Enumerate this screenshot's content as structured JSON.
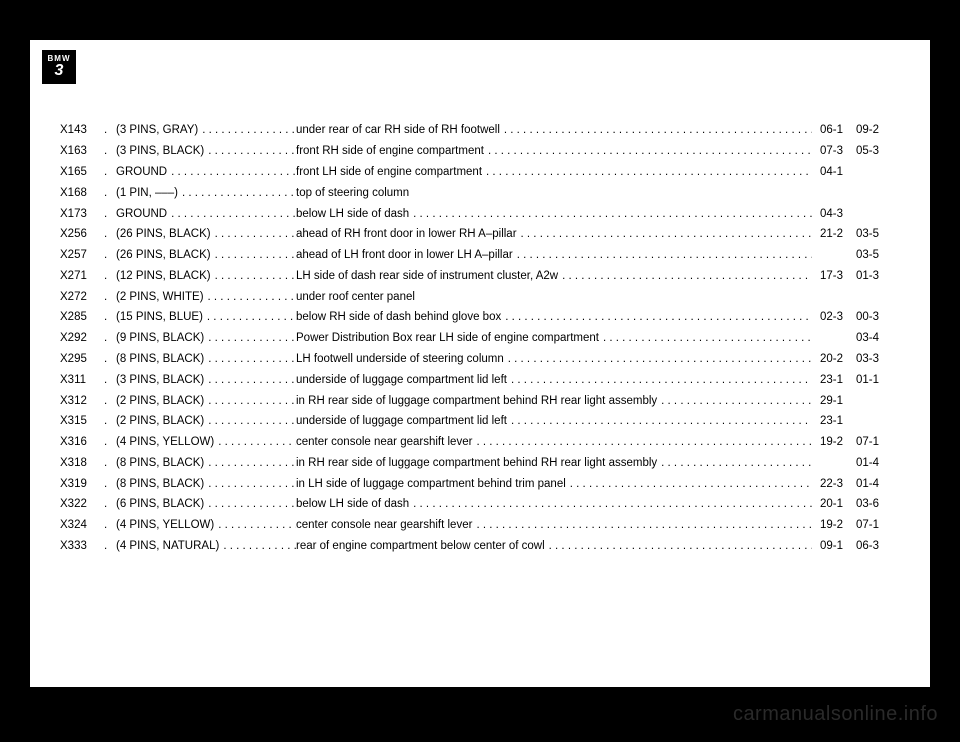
{
  "logo": {
    "brand": "BMW",
    "model": "3"
  },
  "watermark": "carmanualsonline.info",
  "style": {
    "page_bg": "#ffffff",
    "body_bg": "#000000",
    "text_color": "#000000",
    "font_size_pt": 9,
    "watermark_color": "#2a2a2a"
  },
  "columns": [
    "code",
    "dot",
    "type",
    "location",
    "ref1",
    "ref2"
  ],
  "rows": [
    {
      "code": "X143",
      "dot": ".",
      "type": "(3 PINS, GRAY)",
      "loc": "under rear of car RH side of RH footwell",
      "ref1": "06-1",
      "ref2": "09-2"
    },
    {
      "code": "X163",
      "dot": ".",
      "type": "(3 PINS, BLACK)",
      "loc": "front RH side of engine compartment",
      "ref1": "07-3",
      "ref2": "05-3"
    },
    {
      "code": "X165",
      "dot": ".",
      "type": "GROUND",
      "loc": "front LH side of engine compartment",
      "ref1": "04-1",
      "ref2": ""
    },
    {
      "code": "X168",
      "dot": ".",
      "type": "(1 PIN, –––)",
      "loc": "top of steering column",
      "ref1": "",
      "ref2": ""
    },
    {
      "code": "X173",
      "dot": ".",
      "type": "GROUND",
      "loc": "below LH side of dash",
      "ref1": "04-3",
      "ref2": ""
    },
    {
      "code": "X256",
      "dot": ".",
      "type": "(26 PINS, BLACK)",
      "loc": "ahead of RH front door in lower RH A–pillar",
      "ref1": "21-2",
      "ref2": "03-5"
    },
    {
      "code": "X257",
      "dot": ".",
      "type": "(26 PINS, BLACK)",
      "loc": "ahead of LH front door in lower LH A–pillar",
      "ref1": "",
      "ref2": "03-5"
    },
    {
      "code": "X271",
      "dot": ".",
      "type": "(12 PINS, BLACK)",
      "loc": "LH side of dash rear side of instrument cluster, A2w",
      "ref1": "17-3",
      "ref2": "01-3"
    },
    {
      "code": "X272",
      "dot": ".",
      "type": "(2 PINS, WHITE)",
      "loc": "under roof center panel",
      "ref1": "",
      "ref2": ""
    },
    {
      "code": "X285",
      "dot": ".",
      "type": "(15 PINS, BLUE)",
      "loc": "below RH side of dash behind glove box",
      "ref1": "02-3",
      "ref2": "00-3"
    },
    {
      "code": "X292",
      "dot": ".",
      "type": "(9 PINS, BLACK)",
      "loc": "Power Distribution Box rear LH side of engine compartment",
      "ref1": "",
      "ref2": "03-4"
    },
    {
      "code": "X295",
      "dot": ".",
      "type": "(8 PINS, BLACK)",
      "loc": "LH footwell underside of steering column",
      "ref1": "20-2",
      "ref2": "03-3"
    },
    {
      "code": "X311",
      "dot": ".",
      "type": "(3 PINS, BLACK)",
      "loc": "underside of luggage compartment lid left",
      "ref1": "23-1",
      "ref2": "01-1"
    },
    {
      "code": "X312",
      "dot": ".",
      "type": "(2 PINS, BLACK)",
      "loc": "in RH rear side of luggage compartment behind RH rear light assembly",
      "ref1": "29-1",
      "ref2": ""
    },
    {
      "code": "X315",
      "dot": ".",
      "type": "(2 PINS, BLACK)",
      "loc": "underside of luggage compartment lid left",
      "ref1": "23-1",
      "ref2": ""
    },
    {
      "code": "X316",
      "dot": ".",
      "type": "(4 PINS, YELLOW)",
      "loc": "center console near gearshift lever",
      "ref1": "19-2",
      "ref2": "07-1"
    },
    {
      "code": "X318",
      "dot": ".",
      "type": "(8 PINS, BLACK)",
      "loc": "in RH rear side of luggage compartment behind RH rear light assembly",
      "ref1": "",
      "ref2": "01-4"
    },
    {
      "code": "X319",
      "dot": ".",
      "type": "(8 PINS, BLACK)",
      "loc": "in LH side of luggage compartment behind trim panel",
      "ref1": "22-3",
      "ref2": "01-4"
    },
    {
      "code": "X322",
      "dot": ".",
      "type": "(6 PINS, BLACK)",
      "loc": "below LH side of dash",
      "ref1": "20-1",
      "ref2": "03-6"
    },
    {
      "code": "X324",
      "dot": ".",
      "type": "(4 PINS, YELLOW)",
      "loc": "center console near gearshift lever",
      "ref1": "19-2",
      "ref2": "07-1"
    },
    {
      "code": "X333",
      "dot": ".",
      "type": "(4 PINS, NATURAL)",
      "loc": "rear of engine compartment below center of cowl",
      "ref1": "09-1",
      "ref2": "06-3"
    }
  ]
}
